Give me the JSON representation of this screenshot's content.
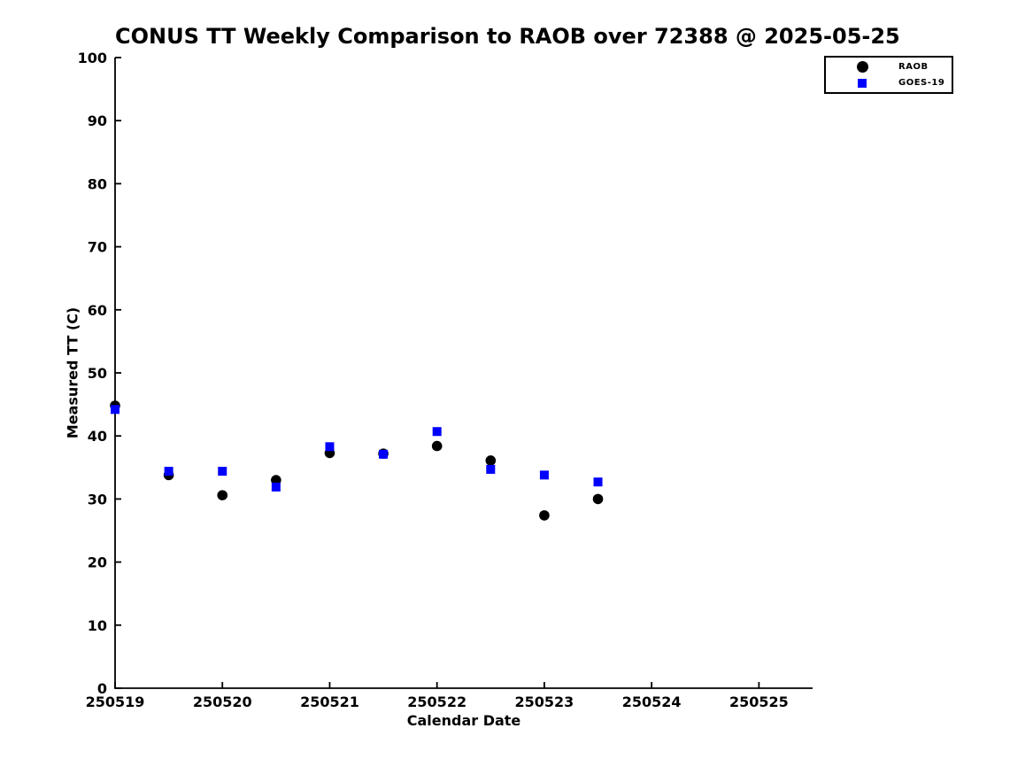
{
  "chart_data": {
    "type": "scatter",
    "title": "CONUS TT Weekly Comparison to RAOB over 72388 @ 2025-05-25",
    "xlabel": "Calendar Date",
    "ylabel": "Measured TT (C)",
    "xlim": [
      0,
      6.5
    ],
    "ylim": [
      0,
      100
    ],
    "grid": false,
    "x_unit": "days after first tick (observations at 0.5-day spacing)",
    "xticks": {
      "positions": [
        0,
        1,
        2,
        3,
        4,
        5,
        6
      ],
      "labels": [
        "250519",
        "250520",
        "250521",
        "250522",
        "250523",
        "250524",
        "250525"
      ]
    },
    "yticks": [
      0,
      10,
      20,
      30,
      40,
      50,
      60,
      70,
      80,
      90,
      100
    ],
    "legend": {
      "position": "top-right-outside",
      "entries": [
        {
          "label": "RAOB",
          "marker": "circle",
          "color": "#000000"
        },
        {
          "label": "GOES-19",
          "marker": "square",
          "color": "#0000ff"
        }
      ]
    },
    "series": [
      {
        "name": "RAOB",
        "marker": "circle",
        "color": "#000000",
        "x": [
          0,
          0.5,
          1,
          1.5,
          2,
          2.5,
          3,
          3.5,
          4,
          4.5
        ],
        "y": [
          44.8,
          33.8,
          30.6,
          33.0,
          37.3,
          37.2,
          38.4,
          36.1,
          27.4,
          30.0
        ]
      },
      {
        "name": "GOES-19",
        "marker": "square",
        "color": "#0000ff",
        "x": [
          0,
          0.5,
          1,
          1.5,
          2,
          2.5,
          3,
          3.5,
          4,
          4.5
        ],
        "y": [
          44.2,
          34.4,
          34.4,
          31.9,
          38.3,
          37.1,
          40.7,
          34.7,
          33.8,
          32.7
        ]
      }
    ]
  }
}
